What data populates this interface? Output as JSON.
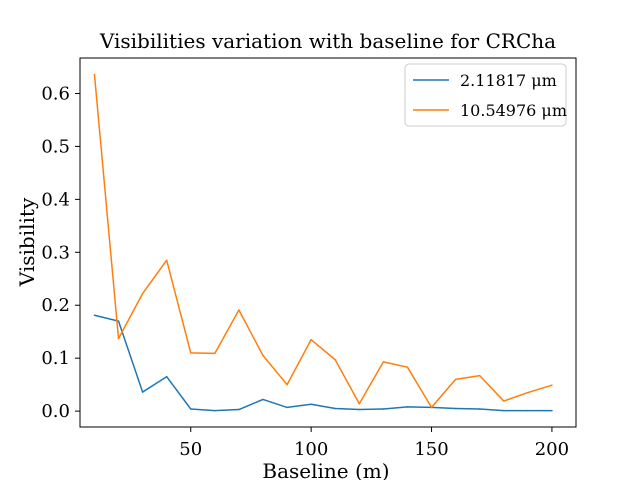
{
  "chart_data": {
    "type": "line",
    "title": "Visibilities variation with baseline for CRCha",
    "xlabel": "Baseline (m)",
    "ylabel": "Visibility",
    "x": [
      10,
      20,
      30,
      40,
      50,
      60,
      70,
      80,
      90,
      100,
      110,
      120,
      130,
      140,
      150,
      160,
      170,
      180,
      190,
      200
    ],
    "series": [
      {
        "name": "2.11817 μm",
        "color": "#1f77b4",
        "values": [
          0.181,
          0.17,
          0.036,
          0.065,
          0.004,
          0.001,
          0.003,
          0.022,
          0.007,
          0.013,
          0.005,
          0.003,
          0.004,
          0.008,
          0.007,
          0.005,
          0.004,
          0.001,
          0.001,
          0.001
        ]
      },
      {
        "name": "10.54976 μm",
        "color": "#ff7f0e",
        "values": [
          0.636,
          0.137,
          0.222,
          0.285,
          0.11,
          0.109,
          0.191,
          0.105,
          0.05,
          0.135,
          0.097,
          0.014,
          0.093,
          0.083,
          0.007,
          0.06,
          0.067,
          0.019,
          0.035,
          0.049
        ]
      }
    ],
    "xlim": [
      4,
      210
    ],
    "ylim": [
      -0.03,
      0.667
    ],
    "xticks": [
      50,
      100,
      150,
      200
    ],
    "yticks": [
      0.0,
      0.1,
      0.2,
      0.3,
      0.4,
      0.5,
      0.6
    ],
    "xtick_labels": [
      "50",
      "100",
      "150",
      "200"
    ],
    "ytick_labels": [
      "0.0",
      "0.1",
      "0.2",
      "0.3",
      "0.4",
      "0.5",
      "0.6"
    ],
    "grid": false,
    "legend_position": "top-right"
  }
}
